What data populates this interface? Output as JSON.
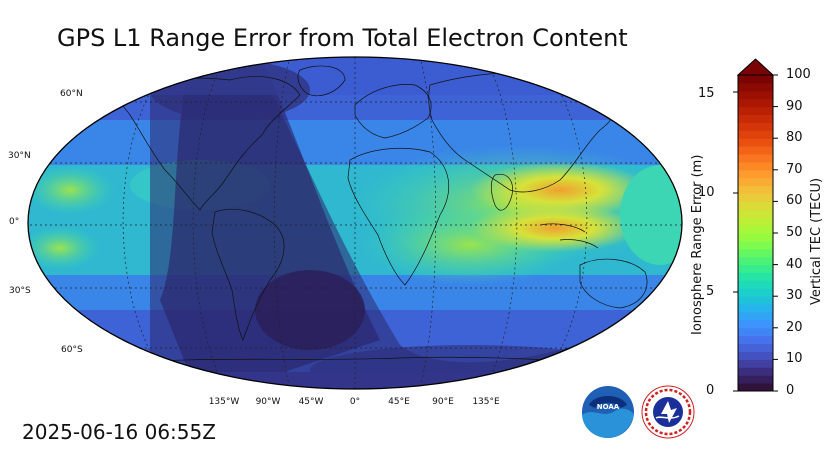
{
  "title": "GPS L1 Range Error from Total Electron Content",
  "timestamp": "2025-06-16 06:55Z",
  "map": {
    "projection": "Robinson",
    "lat_labels": [
      "60°N",
      "30°N",
      "0°",
      "30°S",
      "60°S"
    ],
    "lon_labels": [
      "135°W",
      "90°W",
      "45°W",
      "0°",
      "45°E",
      "90°E",
      "135°E"
    ]
  },
  "colorbar": {
    "left_axis_label": "Ionosphere Range Error (m)",
    "right_axis_label": "Vertical TEC (TECU)",
    "left_ticks": [
      "0",
      "5",
      "10",
      "15"
    ],
    "right_ticks": [
      "0",
      "10",
      "20",
      "30",
      "40",
      "50",
      "60",
      "70",
      "80",
      "90",
      "100"
    ],
    "extend": "max",
    "colormap": "turbo"
  },
  "logos": {
    "noaa": "NOAA",
    "nws": "NATIONAL WEATHER SERVICE"
  },
  "colors": {
    "night": "#2e2a6e",
    "low": "#3a5fcf",
    "mid": "#2bd3a8",
    "high": "#e8a43a",
    "peak": "#d8403a"
  }
}
